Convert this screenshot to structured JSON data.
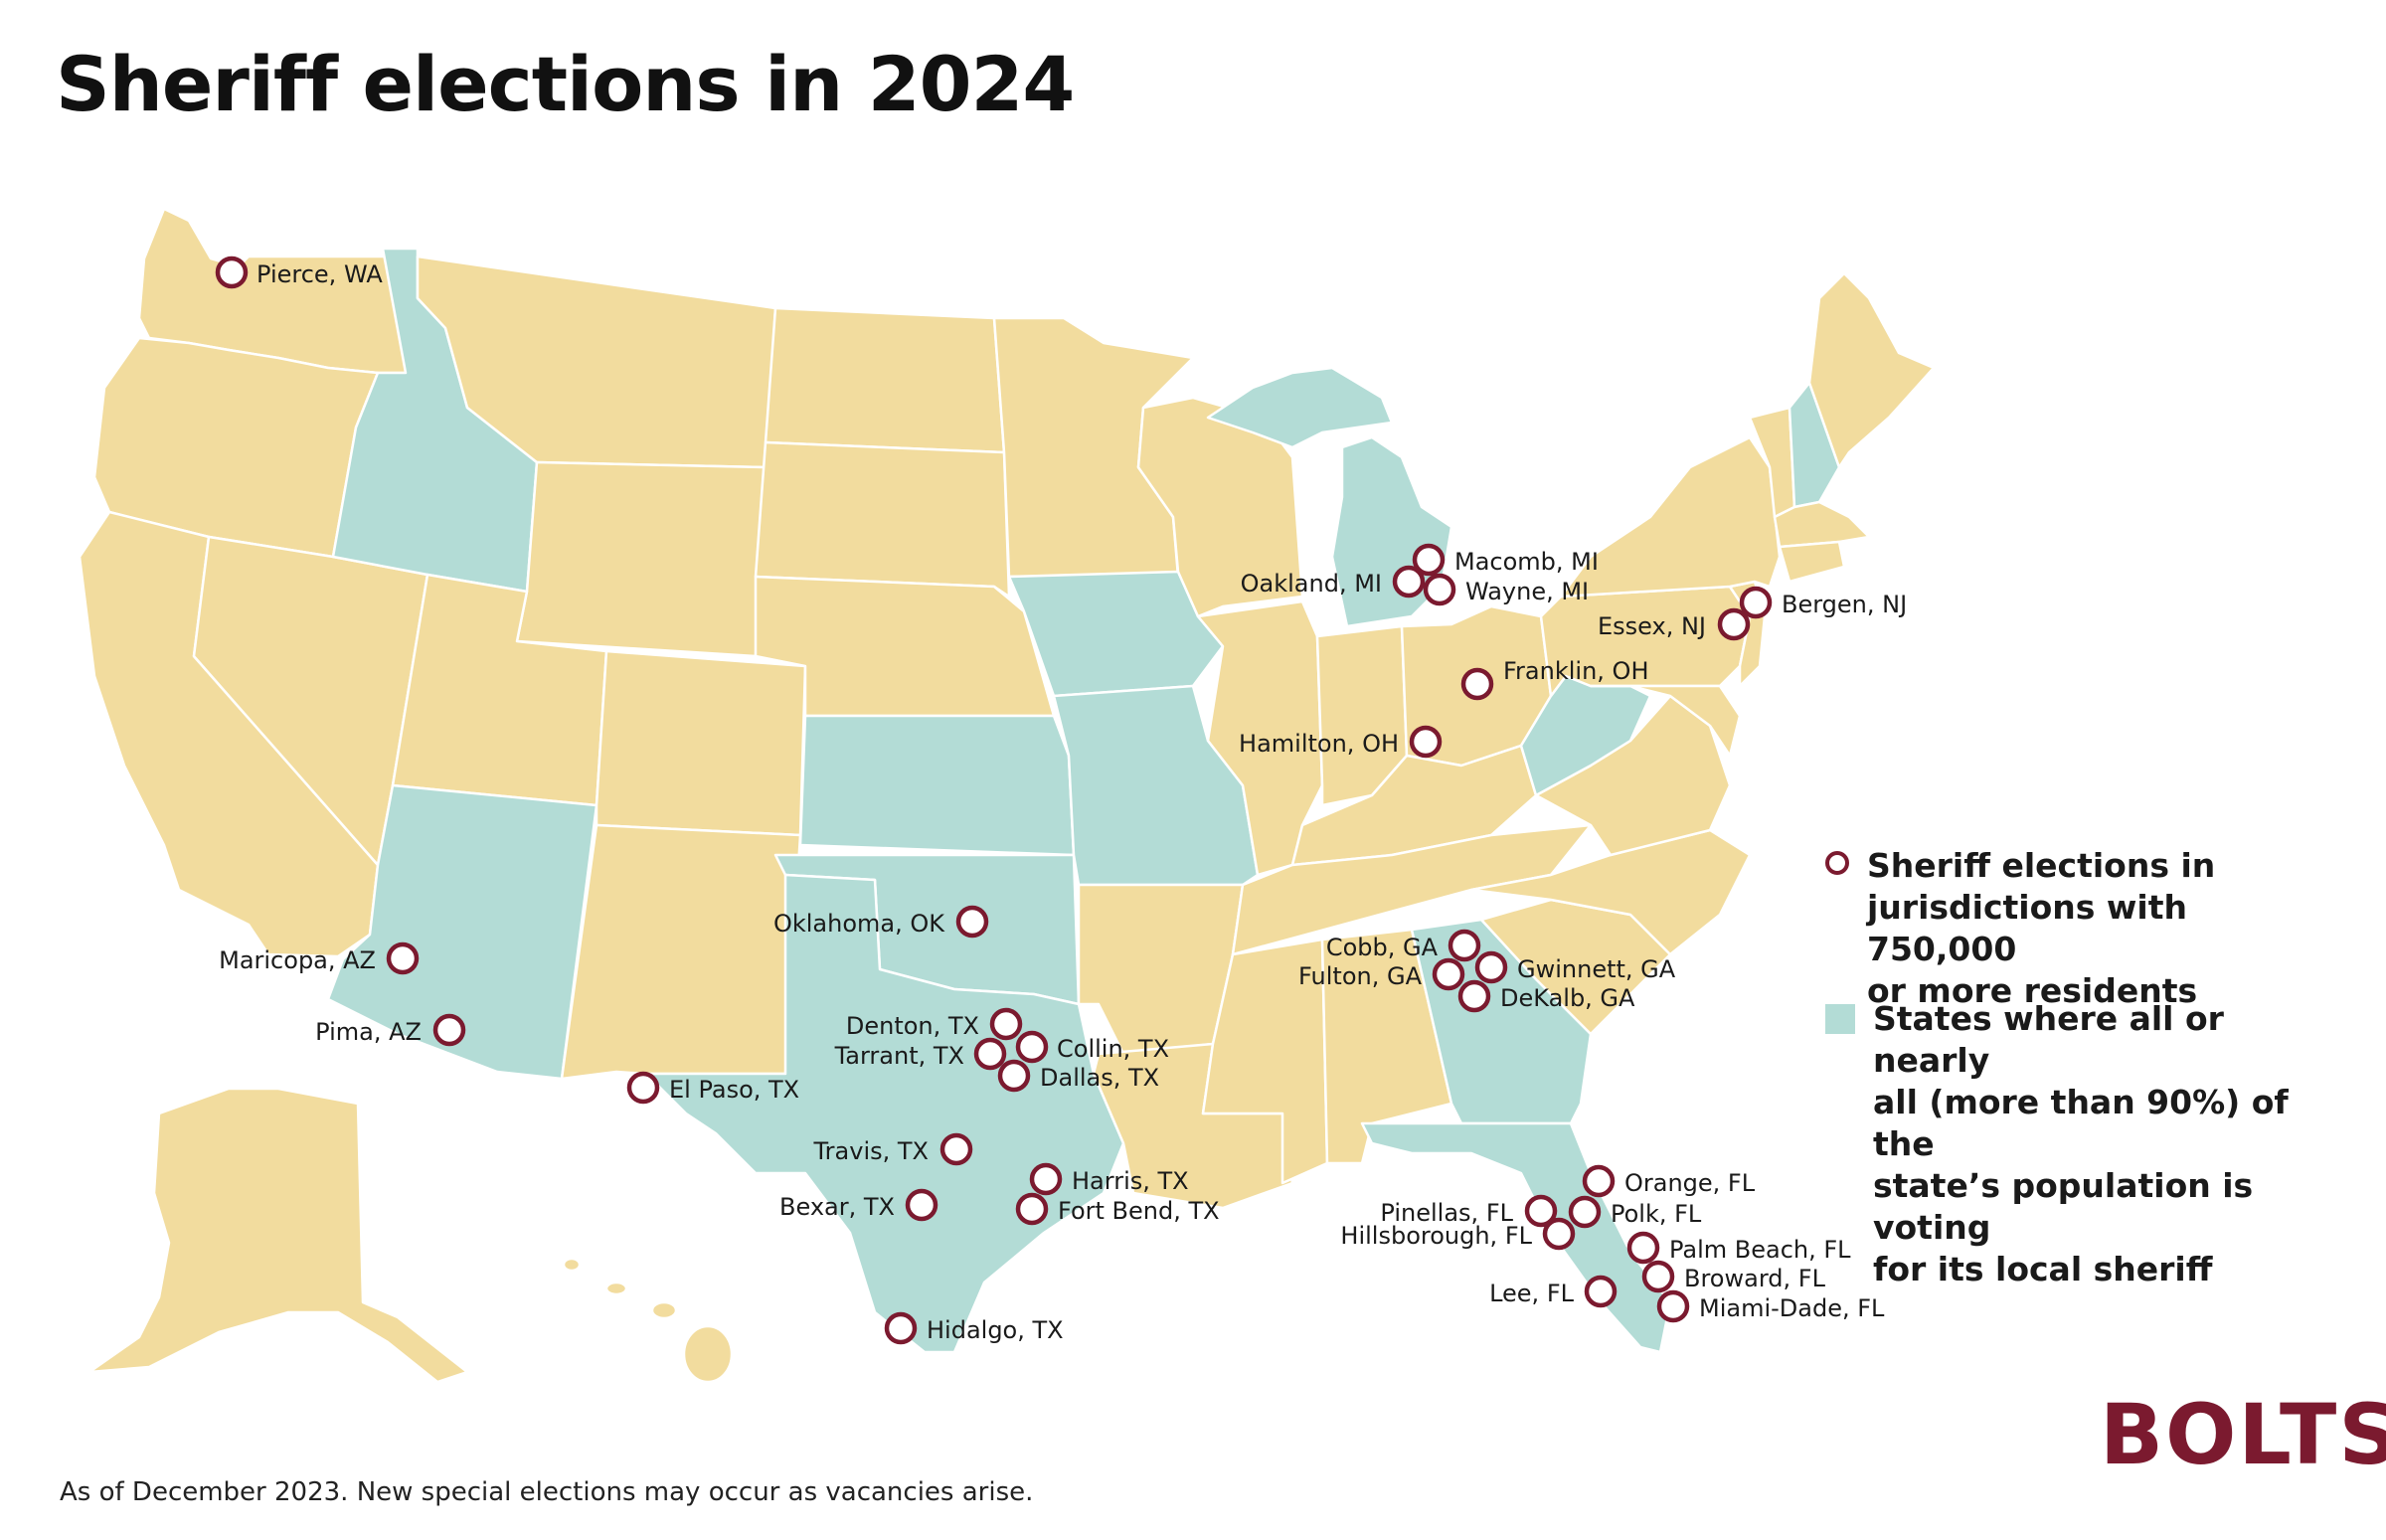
{
  "title": "Sheriff elections in 2024",
  "legend": {
    "marker_label": "Sheriff elections in jurisdictions with 750,000 or more residents",
    "marker_lines": [
      "Sheriff elections in",
      "jurisdictions with 750,000",
      "or more residents"
    ],
    "area_label": "States where all or nearly all (more than 90%) of the state’s population is voting for its local sheriff",
    "area_lines": [
      "States where all or nearly",
      "all (more than 90%) of the",
      "state’s population is voting",
      "for its local sheriff"
    ]
  },
  "footnote": "As of December 2023. New special elections may occur as vacancies arise.",
  "brand": "BOLTS",
  "colors": {
    "state_default": "#f2dc9e",
    "state_highlight": "#b3dcd6",
    "marker": "#7b1a2f",
    "brand": "#7b1a2f"
  },
  "highlighted_states": [
    "Idaho",
    "Arizona",
    "Texas",
    "Oklahoma",
    "Kansas",
    "Iowa",
    "Missouri",
    "Michigan",
    "West Virginia",
    "Georgia",
    "Florida",
    "New Hampshire"
  ],
  "jurisdictions": [
    "Pierce, WA",
    "Maricopa, AZ",
    "Pima, AZ",
    "El Paso, TX",
    "Oklahoma, OK",
    "Denton, TX",
    "Tarrant, TX",
    "Collin, TX",
    "Dallas, TX",
    "Travis, TX",
    "Bexar, TX",
    "Harris, TX",
    "Fort Bend, TX",
    "Hidalgo, TX",
    "Macomb, MI",
    "Oakland, MI",
    "Wayne, MI",
    "Franklin, OH",
    "Hamilton, OH",
    "Essex, NJ",
    "Bergen, NJ",
    "Cobb, GA",
    "Fulton, GA",
    "Gwinnett, GA",
    "DeKalb, GA",
    "Orange, FL",
    "Pinellas, FL",
    "Polk, FL",
    "Hillsborough, FL",
    "Palm Beach, FL",
    "Broward, FL",
    "Lee, FL",
    "Miami-Dade, FL"
  ]
}
